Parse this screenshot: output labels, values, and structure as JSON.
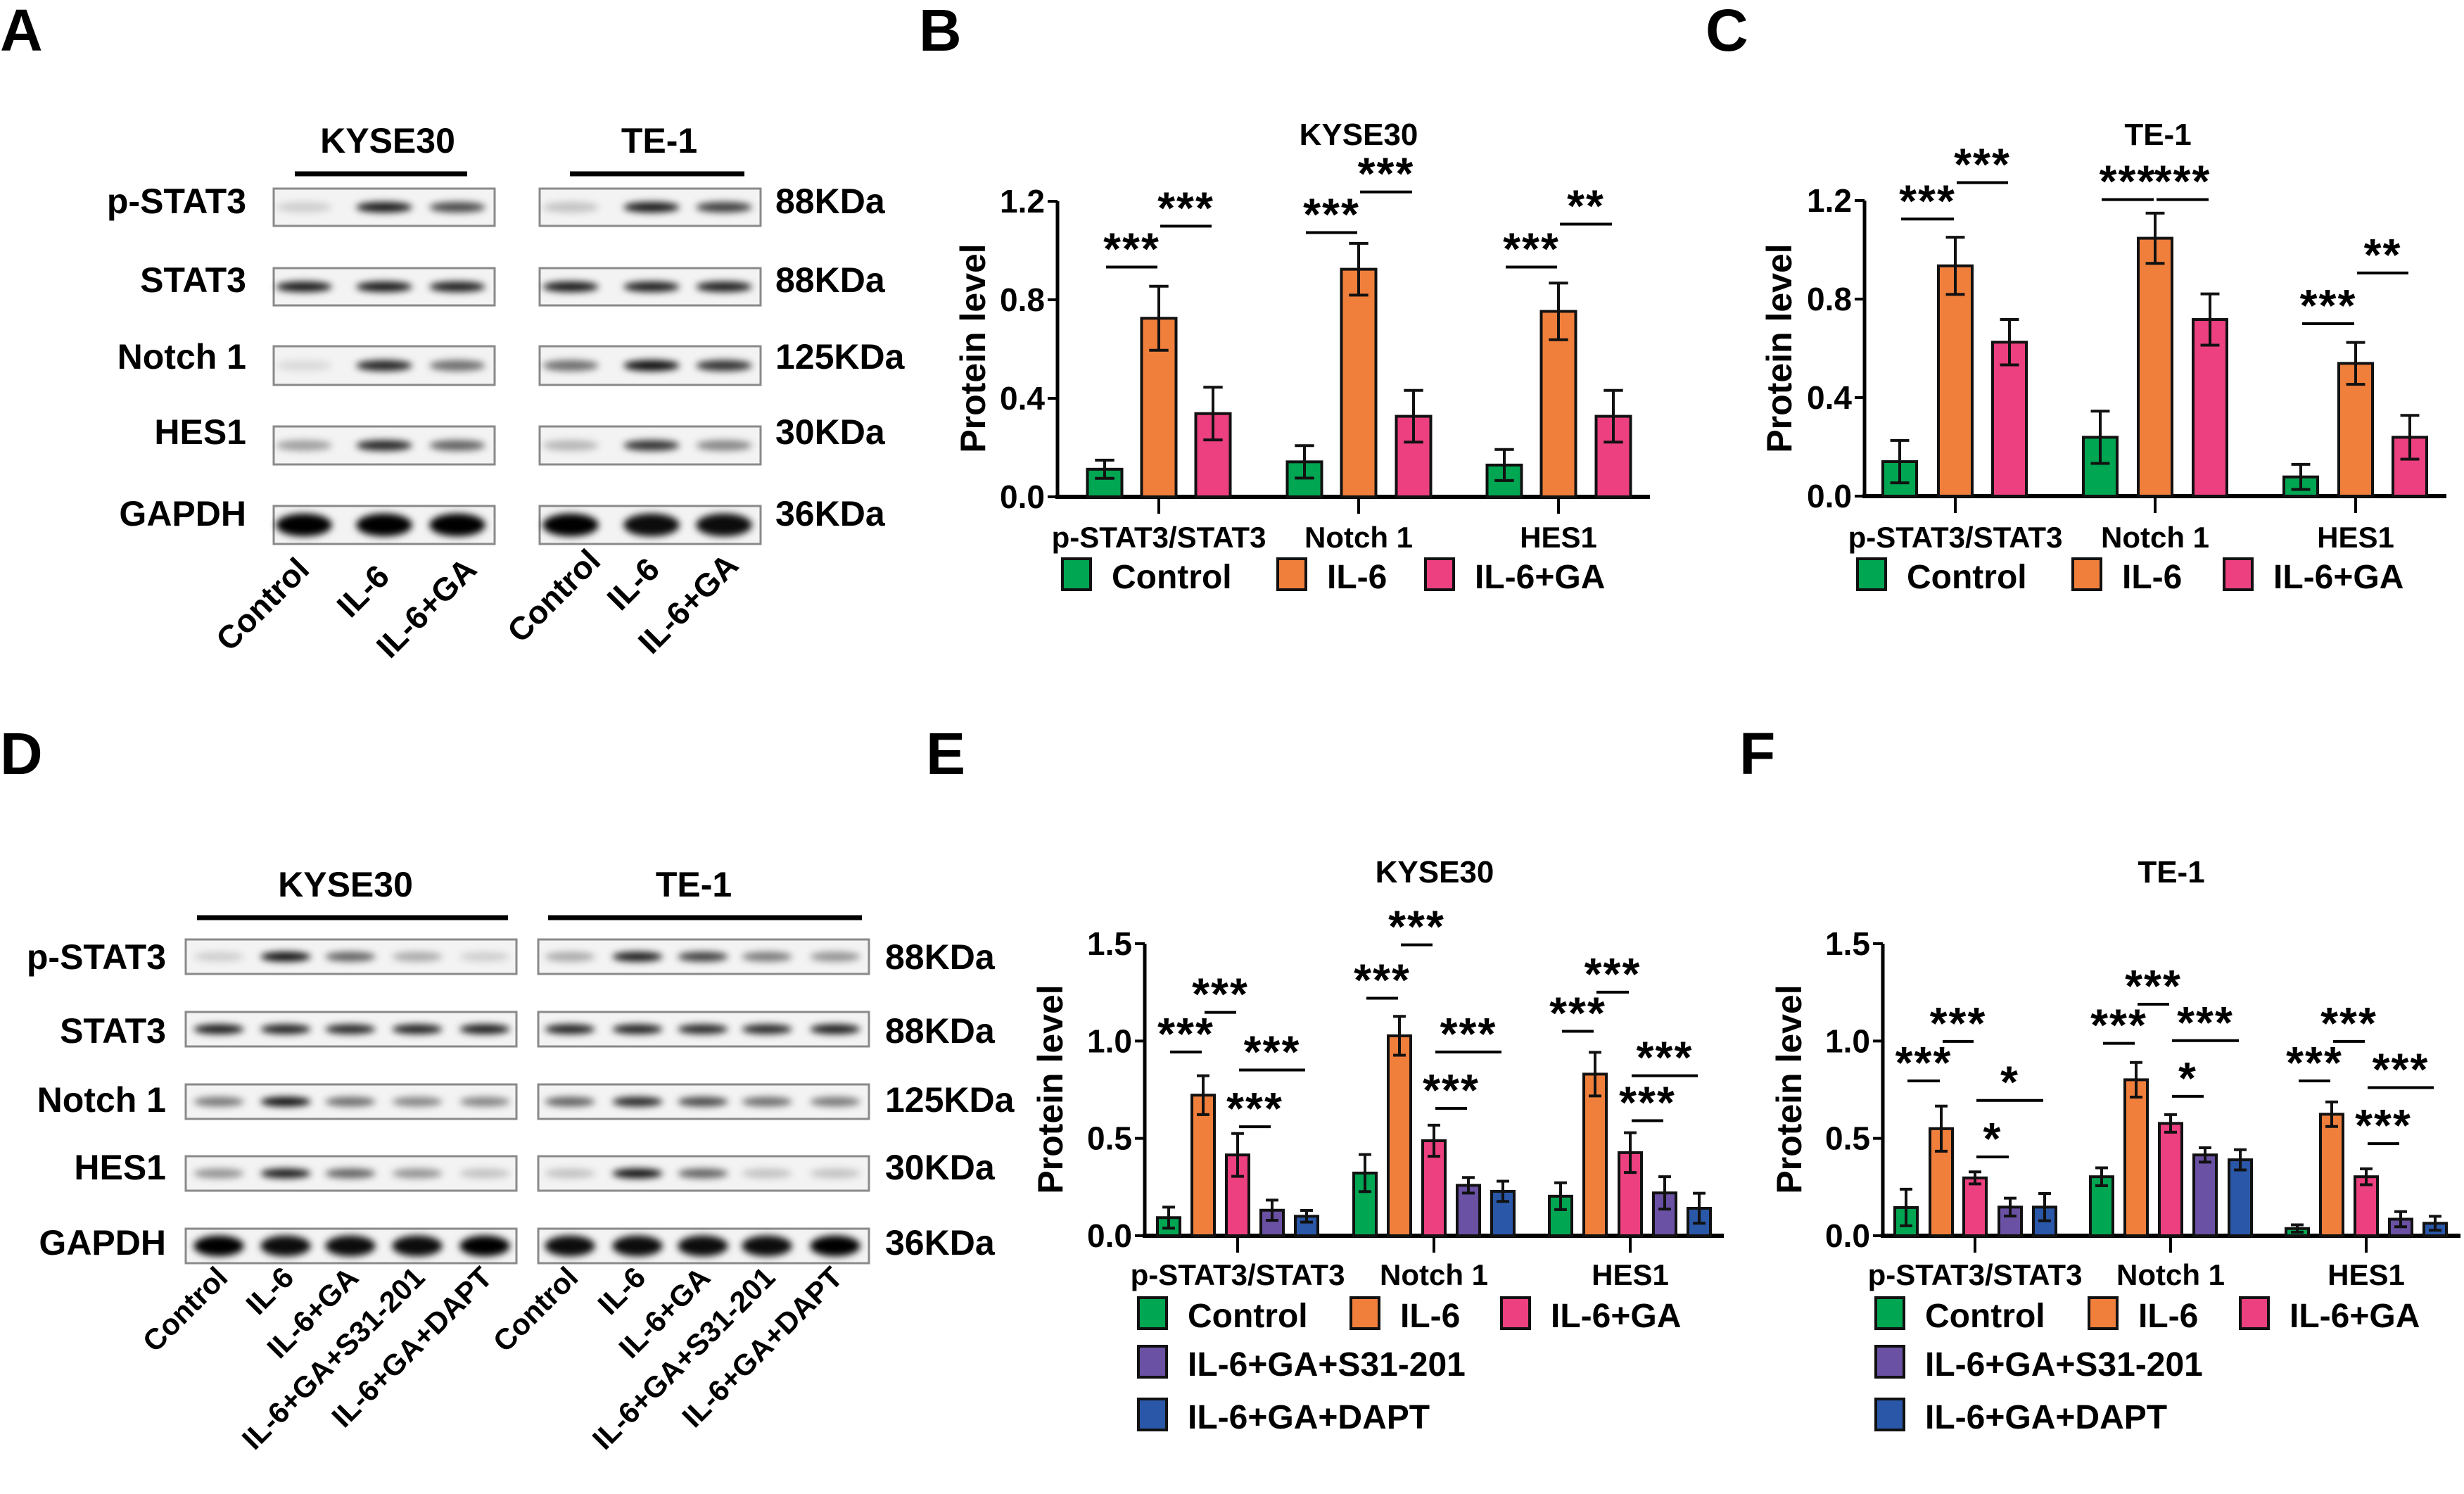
{
  "panels": {
    "A": "A",
    "B": "B",
    "C": "C",
    "D": "D",
    "E": "E",
    "F": "F"
  },
  "blots": [
    {
      "panel": "A",
      "cell_lines": [
        "KYSE30",
        "TE-1"
      ],
      "proteins": [
        "p-STAT3",
        "STAT3",
        "Notch 1",
        "HES1",
        "GAPDH"
      ],
      "markers": [
        "88KDa",
        "88KDa",
        "125KDa",
        "30KDa",
        "36KDa"
      ],
      "lanes": [
        "Control",
        "IL-6",
        "IL-6+GA"
      ],
      "band_intensity": [
        [
          [
            0.15,
            0.9,
            0.7
          ],
          [
            0.2,
            0.9,
            0.75
          ]
        ],
        [
          [
            0.9,
            0.9,
            0.88
          ],
          [
            0.9,
            0.88,
            0.88
          ]
        ],
        [
          [
            0.1,
            0.85,
            0.55
          ],
          [
            0.55,
            0.95,
            0.8
          ]
        ],
        [
          [
            0.35,
            0.85,
            0.6
          ],
          [
            0.25,
            0.8,
            0.45
          ]
        ],
        [
          [
            1,
            1,
            1
          ],
          [
            1,
            0.95,
            0.95
          ]
        ]
      ]
    },
    {
      "panel": "D",
      "cell_lines": [
        "KYSE30",
        "TE-1"
      ],
      "proteins": [
        "p-STAT3",
        "STAT3",
        "Notch 1",
        "HES1",
        "GAPDH"
      ],
      "markers": [
        "88KDa",
        "88KDa",
        "125KDa",
        "30KDa",
        "36KDa"
      ],
      "lanes": [
        "Control",
        "IL-6",
        "IL-6+GA",
        "IL-6+GA+S31-201",
        "IL-6+GA+DAPT"
      ],
      "band_intensity": [
        [
          [
            0.15,
            0.95,
            0.6,
            0.3,
            0.15
          ],
          [
            0.3,
            0.9,
            0.75,
            0.5,
            0.4
          ]
        ],
        [
          [
            0.9,
            0.88,
            0.85,
            0.88,
            0.9
          ],
          [
            0.88,
            0.88,
            0.85,
            0.85,
            0.9
          ]
        ],
        [
          [
            0.5,
            0.95,
            0.55,
            0.45,
            0.45
          ],
          [
            0.6,
            0.85,
            0.7,
            0.55,
            0.5
          ]
        ],
        [
          [
            0.4,
            0.9,
            0.6,
            0.4,
            0.2
          ],
          [
            0.2,
            0.95,
            0.6,
            0.2,
            0.2
          ]
        ],
        [
          [
            1,
            0.95,
            0.95,
            0.95,
            1
          ],
          [
            0.95,
            0.95,
            0.95,
            0.95,
            1
          ]
        ]
      ]
    }
  ],
  "chart_data": [
    {
      "panel": "B",
      "type": "bar",
      "title": "KYSE30",
      "xlabel": "",
      "ylabel": "Protein level",
      "ylim": [
        0,
        1.2
      ],
      "yticks": [
        "0.0",
        "0.4",
        "0.8",
        "1.2"
      ],
      "categories": [
        "p-STAT3/STAT3",
        "Notch 1",
        "HES1"
      ],
      "legend_placement": "bottom",
      "series": [
        {
          "name": "Control",
          "color": "#00a651",
          "values": [
            0.112,
            0.142,
            0.129
          ],
          "errors": [
            0.037,
            0.066,
            0.063
          ]
        },
        {
          "name": "IL-6",
          "color": "#f07f3c",
          "values": [
            0.725,
            0.924,
            0.753
          ],
          "errors": [
            0.13,
            0.105,
            0.115
          ]
        },
        {
          "name": "IL-6+GA",
          "color": "#ec4080",
          "values": [
            0.338,
            0.327,
            0.327
          ],
          "errors": [
            0.107,
            0.105,
            0.105
          ]
        }
      ],
      "significance": [
        {
          "category": 0,
          "from": 0,
          "to": 1,
          "y": 0.933,
          "label": "***"
        },
        {
          "category": 0,
          "from": 1,
          "to": 2,
          "y": 1.099,
          "label": "***"
        },
        {
          "category": 1,
          "from": 0,
          "to": 1,
          "y": 1.073,
          "label": "***"
        },
        {
          "category": 1,
          "from": 1,
          "to": 2,
          "y": 1.238,
          "label": "***"
        },
        {
          "category": 2,
          "from": 0,
          "to": 1,
          "y": 0.933,
          "label": "***"
        },
        {
          "category": 2,
          "from": 1,
          "to": 2,
          "y": 1.107,
          "label": "**"
        }
      ]
    },
    {
      "panel": "C",
      "type": "bar",
      "title": "TE-1",
      "xlabel": "",
      "ylabel": "Protein level",
      "ylim": [
        0,
        1.2
      ],
      "yticks": [
        "0.0",
        "0.4",
        "0.8",
        "1.2"
      ],
      "categories": [
        "p-STAT3/STAT3",
        "Notch 1",
        "HES1"
      ],
      "legend_placement": "bottom",
      "series": [
        {
          "name": "Control",
          "color": "#00a651",
          "values": [
            0.14,
            0.239,
            0.078
          ],
          "errors": [
            0.086,
            0.106,
            0.051
          ]
        },
        {
          "name": "IL-6",
          "color": "#f07f3c",
          "values": [
            0.935,
            1.047,
            0.539
          ],
          "errors": [
            0.116,
            0.102,
            0.085
          ]
        },
        {
          "name": "IL-6+GA",
          "color": "#ec4080",
          "values": [
            0.625,
            0.717,
            0.239
          ],
          "errors": [
            0.092,
            0.104,
            0.089
          ]
        }
      ],
      "significance": [
        {
          "category": 0,
          "from": 0,
          "to": 1,
          "y": 1.125,
          "label": "***"
        },
        {
          "category": 0,
          "from": 1,
          "to": 2,
          "y": 1.273,
          "label": "***"
        },
        {
          "category": 1,
          "from": 0,
          "to": 1,
          "y": 1.204,
          "label": "***"
        },
        {
          "category": 1,
          "from": 1,
          "to": 2,
          "y": 1.204,
          "label": "***"
        },
        {
          "category": 2,
          "from": 0,
          "to": 1,
          "y": 0.7,
          "label": "***"
        },
        {
          "category": 2,
          "from": 1,
          "to": 2,
          "y": 0.906,
          "label": "**"
        }
      ]
    },
    {
      "panel": "E",
      "type": "bar",
      "title": "KYSE30",
      "xlabel": "",
      "ylabel": "Protein level",
      "ylim": [
        0,
        1.5
      ],
      "yticks": [
        "0.0",
        "0.5",
        "1.0",
        "1.5"
      ],
      "categories": [
        "p-STAT3/STAT3",
        "Notch 1",
        "HES1"
      ],
      "legend_placement": "bottom",
      "series": [
        {
          "name": "Control",
          "color": "#00a651",
          "values": [
            0.093,
            0.322,
            0.203
          ],
          "errors": [
            0.054,
            0.095,
            0.069
          ]
        },
        {
          "name": "IL-6",
          "color": "#f07f3c",
          "values": [
            0.722,
            1.027,
            0.83
          ],
          "errors": [
            0.1,
            0.1,
            0.112
          ]
        },
        {
          "name": "IL-6+GA",
          "color": "#ec4080",
          "values": [
            0.415,
            0.488,
            0.427
          ],
          "errors": [
            0.11,
            0.08,
            0.102
          ]
        },
        {
          "name": "IL-6+GA+S31-201",
          "color": "#6a51a3",
          "values": [
            0.131,
            0.259,
            0.22
          ],
          "errors": [
            0.052,
            0.04,
            0.083
          ]
        },
        {
          "name": "IL-6+GA+DAPT",
          "color": "#2a57a8",
          "values": [
            0.1,
            0.228,
            0.141
          ],
          "errors": [
            0.03,
            0.052,
            0.077
          ]
        }
      ],
      "significance": [
        {
          "category": 0,
          "from": 0,
          "to": 1,
          "y": 0.944,
          "label": "***"
        },
        {
          "category": 0,
          "from": 1,
          "to": 2,
          "y": 1.147,
          "label": "***"
        },
        {
          "category": 0,
          "from": 2,
          "to": 4,
          "y": 0.851,
          "label": "***"
        },
        {
          "category": 0,
          "from": 2,
          "to": 3,
          "y": 0.56,
          "label": "***"
        },
        {
          "category": 1,
          "from": 0,
          "to": 1,
          "y": 1.22,
          "label": "***"
        },
        {
          "category": 1,
          "from": 1,
          "to": 2,
          "y": 1.494,
          "label": "***"
        },
        {
          "category": 1,
          "from": 2,
          "to": 4,
          "y": 0.944,
          "label": "***"
        },
        {
          "category": 1,
          "from": 2,
          "to": 3,
          "y": 0.654,
          "label": "***"
        },
        {
          "category": 2,
          "from": 0,
          "to": 1,
          "y": 1.05,
          "label": "***"
        },
        {
          "category": 2,
          "from": 1,
          "to": 2,
          "y": 1.251,
          "label": "***"
        },
        {
          "category": 2,
          "from": 2,
          "to": 4,
          "y": 0.822,
          "label": "***"
        },
        {
          "category": 2,
          "from": 2,
          "to": 3,
          "y": 0.591,
          "label": "***"
        }
      ]
    },
    {
      "panel": "F",
      "type": "bar",
      "title": "TE-1",
      "xlabel": "",
      "ylabel": "Protein level",
      "ylim": [
        0,
        1.5
      ],
      "yticks": [
        "0.0",
        "0.5",
        "1.0",
        "1.5"
      ],
      "categories": [
        "p-STAT3/STAT3",
        "Notch 1",
        "HES1"
      ],
      "legend_placement": "bottom",
      "series": [
        {
          "name": "Control",
          "color": "#00a651",
          "values": [
            0.145,
            0.303,
            0.037
          ],
          "errors": [
            0.094,
            0.046,
            0.019
          ]
        },
        {
          "name": "IL-6",
          "color": "#f07f3c",
          "values": [
            0.55,
            0.801,
            0.624
          ],
          "errors": [
            0.116,
            0.089,
            0.063
          ]
        },
        {
          "name": "IL-6+GA",
          "color": "#ec4080",
          "values": [
            0.297,
            0.577,
            0.303
          ],
          "errors": [
            0.031,
            0.045,
            0.041
          ]
        },
        {
          "name": "IL-6+GA+S31-201",
          "color": "#6a51a3",
          "values": [
            0.147,
            0.415,
            0.085
          ],
          "errors": [
            0.046,
            0.037,
            0.039
          ]
        },
        {
          "name": "IL-6+GA+DAPT",
          "color": "#2a57a8",
          "values": [
            0.147,
            0.39,
            0.064
          ],
          "errors": [
            0.07,
            0.052,
            0.036
          ]
        }
      ],
      "significance": [
        {
          "category": 0,
          "from": 0,
          "to": 1,
          "y": 0.795,
          "label": "***"
        },
        {
          "category": 0,
          "from": 1,
          "to": 2,
          "y": 0.998,
          "label": "***"
        },
        {
          "category": 0,
          "from": 2,
          "to": 4,
          "y": 0.695,
          "label": "*"
        },
        {
          "category": 0,
          "from": 2,
          "to": 3,
          "y": 0.405,
          "label": "*"
        },
        {
          "category": 1,
          "from": 0,
          "to": 1,
          "y": 0.988,
          "label": "***"
        },
        {
          "category": 1,
          "from": 1,
          "to": 2,
          "y": 1.189,
          "label": "***"
        },
        {
          "category": 1,
          "from": 2,
          "to": 4,
          "y": 1.002,
          "label": "***"
        },
        {
          "category": 1,
          "from": 2,
          "to": 3,
          "y": 0.716,
          "label": "*"
        },
        {
          "category": 2,
          "from": 0,
          "to": 1,
          "y": 0.795,
          "label": "***"
        },
        {
          "category": 2,
          "from": 1,
          "to": 2,
          "y": 0.998,
          "label": "***"
        },
        {
          "category": 2,
          "from": 2,
          "to": 4,
          "y": 0.761,
          "label": "***"
        },
        {
          "category": 2,
          "from": 2,
          "to": 3,
          "y": 0.473,
          "label": "***"
        }
      ]
    }
  ]
}
